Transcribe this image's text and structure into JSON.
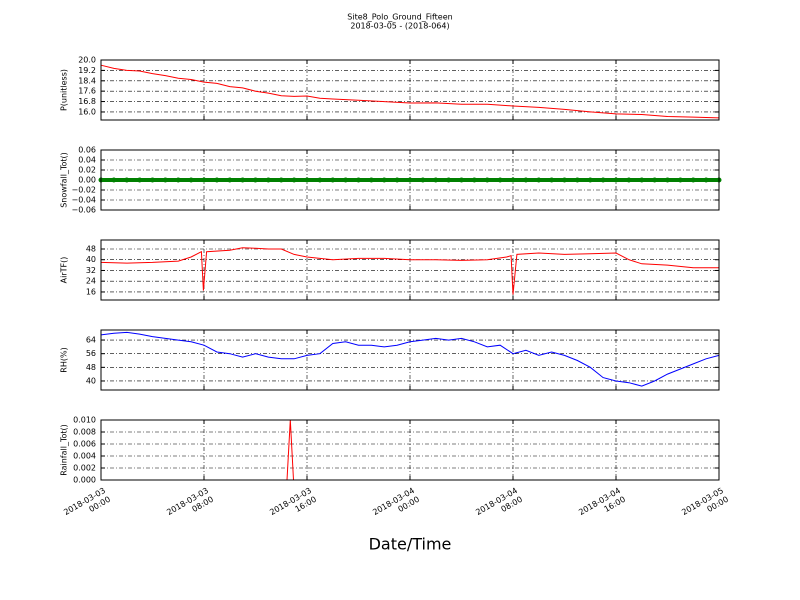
{
  "chart_data": [
    {
      "type": "line",
      "title": "Site8_Polo_Ground_Fifteen",
      "subtitle": "2018-03-05 - (2018-064)",
      "ylabel": "P(unitless)",
      "color": "#ff0000",
      "grid": true,
      "xlim": [
        0,
        48
      ],
      "ylim": [
        15.38,
        20.0
      ],
      "yticks": [
        {
          "value": 16,
          "label": "16.0"
        },
        16.8,
        17.6,
        18.4,
        19.2,
        {
          "value": 20,
          "label": "20.0"
        }
      ],
      "x": [
        0,
        1,
        2,
        3,
        4,
        5,
        6,
        7,
        8,
        9,
        10,
        11,
        12,
        13,
        14,
        15,
        16,
        17,
        18,
        20,
        22,
        24,
        26,
        28,
        30,
        32,
        34,
        36,
        38,
        40,
        42,
        44,
        46,
        48
      ],
      "values": [
        19.6,
        19.35,
        19.2,
        19.15,
        18.95,
        18.8,
        18.6,
        18.5,
        18.3,
        18.2,
        17.95,
        17.85,
        17.6,
        17.45,
        17.25,
        17.2,
        17.23,
        17.05,
        17.0,
        16.9,
        16.8,
        16.69,
        16.7,
        16.6,
        16.6,
        16.46,
        16.35,
        16.2,
        16.0,
        15.85,
        15.8,
        15.65,
        15.6,
        15.54
      ]
    },
    {
      "type": "scatter",
      "ylabel": "Snowfall_Tot()",
      "color": "#008000",
      "grid": true,
      "xlim": [
        0,
        48
      ],
      "ylim": [
        -0.06,
        0.06
      ],
      "yticks": [
        {
          "value": -0.06,
          "label": "−0.06"
        },
        {
          "value": -0.04,
          "label": "−0.04"
        },
        {
          "value": -0.02,
          "label": "−0.02"
        },
        {
          "value": 0,
          "label": "0.00"
        },
        0.02,
        0.04,
        0.06
      ],
      "x": [
        0,
        1,
        2,
        3,
        4,
        5,
        6,
        7,
        8,
        9,
        10,
        11,
        12,
        13,
        14,
        15,
        16,
        17,
        18,
        19,
        20,
        21,
        22,
        23,
        24,
        25,
        26,
        27,
        28,
        29,
        30,
        31,
        32,
        33,
        34,
        35,
        36,
        37,
        38,
        39,
        40,
        41,
        42,
        43,
        44,
        45,
        46,
        47,
        48
      ],
      "values": [
        0,
        0,
        0,
        0,
        0,
        0,
        0,
        0,
        0,
        0,
        0,
        0,
        0,
        0,
        0,
        0,
        0,
        0,
        0,
        0,
        0,
        0,
        0,
        0,
        0,
        0,
        0,
        0,
        0,
        0,
        0,
        0,
        0,
        0,
        0,
        0,
        0,
        0,
        0,
        0,
        0,
        0,
        0,
        0,
        0,
        0,
        0,
        0,
        0
      ]
    },
    {
      "type": "line",
      "ylabel": "AirTF()",
      "color": "#ff0000",
      "grid": true,
      "xlim": [
        0,
        48
      ],
      "ylim": [
        10,
        54.7
      ],
      "yticks": [
        16,
        24,
        32,
        40,
        48
      ],
      "x": [
        0,
        2,
        4,
        6,
        7,
        7.8,
        7.95,
        8.2,
        10,
        11,
        12,
        13,
        14,
        15,
        16,
        17,
        18,
        20,
        22,
        24,
        26,
        28,
        30,
        31.5,
        31.85,
        32,
        32.3,
        34,
        36,
        38,
        40,
        41,
        42,
        44,
        46,
        48
      ],
      "values": [
        38,
        37.5,
        38,
        39,
        42,
        46,
        17,
        46,
        47,
        49,
        48.5,
        48,
        48,
        44,
        42,
        41,
        40,
        41,
        41,
        40,
        40,
        39.5,
        40,
        42,
        43,
        14,
        44,
        45,
        44,
        44.5,
        45,
        40,
        37,
        36,
        34,
        34
      ]
    },
    {
      "type": "line",
      "ylabel": "RH(%)",
      "color": "#0000ff",
      "grid": true,
      "xlim": [
        0,
        48
      ],
      "ylim": [
        34.7,
        69.9
      ],
      "yticks": [
        40,
        48,
        56,
        64
      ],
      "x": [
        0,
        1,
        2,
        3,
        4,
        5,
        6,
        7,
        8,
        9,
        10,
        11,
        12,
        13,
        14,
        15,
        16,
        17,
        18,
        19,
        20,
        21,
        22,
        23,
        24,
        25,
        26,
        27,
        28,
        29,
        30,
        31,
        32,
        33,
        34,
        35,
        36,
        37,
        38,
        39,
        40,
        41,
        42,
        43,
        44,
        45,
        46,
        47,
        48
      ],
      "values": [
        67,
        68,
        68.5,
        67.5,
        66,
        65,
        64,
        63,
        61,
        57,
        56,
        54,
        56,
        54,
        53,
        53,
        55,
        56,
        62,
        63,
        61,
        61,
        60,
        61,
        63,
        64,
        65,
        64,
        65,
        63,
        60,
        61,
        56,
        58,
        55,
        57,
        55,
        52,
        48,
        42,
        40,
        39,
        37,
        40,
        44,
        47,
        50,
        53,
        55
      ]
    },
    {
      "type": "line",
      "ylabel": "Rainfall_Tot()",
      "xlabel": "Date/Time",
      "color": "#ff0000",
      "grid": true,
      "xlim": [
        0,
        48
      ],
      "ylim": [
        0,
        0.01
      ],
      "yticks": [
        {
          "value": 0,
          "label": "0.000"
        },
        {
          "value": 0.002,
          "label": "0.002"
        },
        {
          "value": 0.004,
          "label": "0.004"
        },
        {
          "value": 0.006,
          "label": "0.006"
        },
        {
          "value": 0.008,
          "label": "0.008"
        },
        {
          "value": 0.01,
          "label": "0.010"
        }
      ],
      "xticks": [
        {
          "value": 0,
          "label": "2018-03-03\n00:00"
        },
        {
          "value": 8,
          "label": "2018-03-03\n08:00"
        },
        {
          "value": 16,
          "label": "2018-03-03\n16:00"
        },
        {
          "value": 24,
          "label": "2018-03-04\n00:00"
        },
        {
          "value": 32,
          "label": "2018-03-04\n08:00"
        },
        {
          "value": 40,
          "label": "2018-03-04\n16:00"
        },
        {
          "value": 48,
          "label": "2018-03-05\n00:00"
        }
      ],
      "x": [
        0,
        14.45,
        14.7,
        14.95,
        48
      ],
      "values": [
        0,
        0,
        0.01,
        0,
        0
      ]
    }
  ]
}
